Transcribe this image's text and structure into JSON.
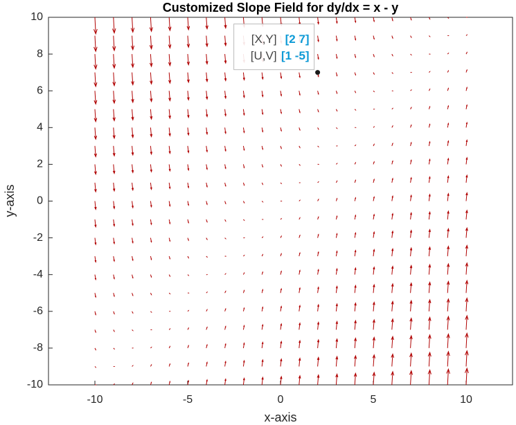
{
  "chart_data": {
    "type": "quiver",
    "title": "Customized Slope Field for dy/dx = x - y",
    "x_label": "x-axis",
    "y_label": "y-axis",
    "color": "#b00000",
    "xlim": [
      -12.5,
      12.5
    ],
    "ylim": [
      -10,
      10
    ],
    "xticks": [
      -10,
      -5,
      0,
      5,
      10
    ],
    "yticks": [
      -10,
      -8,
      -6,
      -4,
      -2,
      0,
      2,
      4,
      6,
      8,
      10
    ],
    "x": [
      -10,
      -9,
      -8,
      -7,
      -6,
      -5,
      -4,
      -3,
      -2,
      -1,
      0,
      1,
      2,
      3,
      4,
      5,
      6,
      7,
      8,
      9,
      10
    ],
    "y": [
      -10,
      -9,
      -8,
      -7,
      -6,
      -5,
      -4,
      -3,
      -2,
      -1,
      0,
      1,
      2,
      3,
      4,
      5,
      6,
      7,
      8,
      9,
      10
    ],
    "u": [
      [
        1,
        1,
        1,
        1,
        1,
        1,
        1,
        1,
        1,
        1,
        1,
        1,
        1,
        1,
        1,
        1,
        1,
        1,
        1,
        1,
        1
      ],
      [
        1,
        1,
        1,
        1,
        1,
        1,
        1,
        1,
        1,
        1,
        1,
        1,
        1,
        1,
        1,
        1,
        1,
        1,
        1,
        1,
        1
      ],
      [
        1,
        1,
        1,
        1,
        1,
        1,
        1,
        1,
        1,
        1,
        1,
        1,
        1,
        1,
        1,
        1,
        1,
        1,
        1,
        1,
        1
      ],
      [
        1,
        1,
        1,
        1,
        1,
        1,
        1,
        1,
        1,
        1,
        1,
        1,
        1,
        1,
        1,
        1,
        1,
        1,
        1,
        1,
        1
      ],
      [
        1,
        1,
        1,
        1,
        1,
        1,
        1,
        1,
        1,
        1,
        1,
        1,
        1,
        1,
        1,
        1,
        1,
        1,
        1,
        1,
        1
      ],
      [
        1,
        1,
        1,
        1,
        1,
        1,
        1,
        1,
        1,
        1,
        1,
        1,
        1,
        1,
        1,
        1,
        1,
        1,
        1,
        1,
        1
      ],
      [
        1,
        1,
        1,
        1,
        1,
        1,
        1,
        1,
        1,
        1,
        1,
        1,
        1,
        1,
        1,
        1,
        1,
        1,
        1,
        1,
        1
      ],
      [
        1,
        1,
        1,
        1,
        1,
        1,
        1,
        1,
        1,
        1,
        1,
        1,
        1,
        1,
        1,
        1,
        1,
        1,
        1,
        1,
        1
      ],
      [
        1,
        1,
        1,
        1,
        1,
        1,
        1,
        1,
        1,
        1,
        1,
        1,
        1,
        1,
        1,
        1,
        1,
        1,
        1,
        1,
        1
      ],
      [
        1,
        1,
        1,
        1,
        1,
        1,
        1,
        1,
        1,
        1,
        1,
        1,
        1,
        1,
        1,
        1,
        1,
        1,
        1,
        1,
        1
      ],
      [
        1,
        1,
        1,
        1,
        1,
        1,
        1,
        1,
        1,
        1,
        1,
        1,
        1,
        1,
        1,
        1,
        1,
        1,
        1,
        1,
        1
      ],
      [
        1,
        1,
        1,
        1,
        1,
        1,
        1,
        1,
        1,
        1,
        1,
        1,
        1,
        1,
        1,
        1,
        1,
        1,
        1,
        1,
        1
      ],
      [
        1,
        1,
        1,
        1,
        1,
        1,
        1,
        1,
        1,
        1,
        1,
        1,
        1,
        1,
        1,
        1,
        1,
        1,
        1,
        1,
        1
      ],
      [
        1,
        1,
        1,
        1,
        1,
        1,
        1,
        1,
        1,
        1,
        1,
        1,
        1,
        1,
        1,
        1,
        1,
        1,
        1,
        1,
        1
      ],
      [
        1,
        1,
        1,
        1,
        1,
        1,
        1,
        1,
        1,
        1,
        1,
        1,
        1,
        1,
        1,
        1,
        1,
        1,
        1,
        1,
        1
      ],
      [
        1,
        1,
        1,
        1,
        1,
        1,
        1,
        1,
        1,
        1,
        1,
        1,
        1,
        1,
        1,
        1,
        1,
        1,
        1,
        1,
        1
      ],
      [
        1,
        1,
        1,
        1,
        1,
        1,
        1,
        1,
        1,
        1,
        1,
        1,
        1,
        1,
        1,
        1,
        1,
        1,
        1,
        1,
        1
      ],
      [
        1,
        1,
        1,
        1,
        1,
        1,
        1,
        1,
        1,
        1,
        1,
        1,
        1,
        1,
        1,
        1,
        1,
        1,
        1,
        1,
        1
      ],
      [
        1,
        1,
        1,
        1,
        1,
        1,
        1,
        1,
        1,
        1,
        1,
        1,
        1,
        1,
        1,
        1,
        1,
        1,
        1,
        1,
        1
      ],
      [
        1,
        1,
        1,
        1,
        1,
        1,
        1,
        1,
        1,
        1,
        1,
        1,
        1,
        1,
        1,
        1,
        1,
        1,
        1,
        1,
        1
      ],
      [
        1,
        1,
        1,
        1,
        1,
        1,
        1,
        1,
        1,
        1,
        1,
        1,
        1,
        1,
        1,
        1,
        1,
        1,
        1,
        1,
        1
      ]
    ],
    "v": [
      [
        0,
        1,
        2,
        3,
        4,
        5,
        6,
        7,
        8,
        9,
        10,
        11,
        12,
        13,
        14,
        15,
        16,
        17,
        18,
        19,
        20
      ],
      [
        -1,
        0,
        1,
        2,
        3,
        4,
        5,
        6,
        7,
        8,
        9,
        10,
        11,
        12,
        13,
        14,
        15,
        16,
        17,
        18,
        19
      ],
      [
        -2,
        -1,
        0,
        1,
        2,
        3,
        4,
        5,
        6,
        7,
        8,
        9,
        10,
        11,
        12,
        13,
        14,
        15,
        16,
        17,
        18
      ],
      [
        -3,
        -2,
        -1,
        0,
        1,
        2,
        3,
        4,
        5,
        6,
        7,
        8,
        9,
        10,
        11,
        12,
        13,
        14,
        15,
        16,
        17
      ],
      [
        -4,
        -3,
        -2,
        -1,
        0,
        1,
        2,
        3,
        4,
        5,
        6,
        7,
        8,
        9,
        10,
        11,
        12,
        13,
        14,
        15,
        16
      ],
      [
        -5,
        -4,
        -3,
        -2,
        -1,
        0,
        1,
        2,
        3,
        4,
        5,
        6,
        7,
        8,
        9,
        10,
        11,
        12,
        13,
        14,
        15
      ],
      [
        -6,
        -5,
        -4,
        -3,
        -2,
        -1,
        0,
        1,
        2,
        3,
        4,
        5,
        6,
        7,
        8,
        9,
        10,
        11,
        12,
        13,
        14
      ],
      [
        -7,
        -6,
        -5,
        -4,
        -3,
        -2,
        -1,
        0,
        1,
        2,
        3,
        4,
        5,
        6,
        7,
        8,
        9,
        10,
        11,
        12,
        13
      ],
      [
        -8,
        -7,
        -6,
        -5,
        -4,
        -3,
        -2,
        -1,
        0,
        1,
        2,
        3,
        4,
        5,
        6,
        7,
        8,
        9,
        10,
        11,
        12
      ],
      [
        -9,
        -8,
        -7,
        -6,
        -5,
        -4,
        -3,
        -2,
        -1,
        0,
        1,
        2,
        3,
        4,
        5,
        6,
        7,
        8,
        9,
        10,
        11
      ],
      [
        -10,
        -9,
        -8,
        -7,
        -6,
        -5,
        -4,
        -3,
        -2,
        -1,
        0,
        1,
        2,
        3,
        4,
        5,
        6,
        7,
        8,
        9,
        10
      ],
      [
        -11,
        -10,
        -9,
        -8,
        -7,
        -6,
        -5,
        -4,
        -3,
        -2,
        -1,
        0,
        1,
        2,
        3,
        4,
        5,
        6,
        7,
        8,
        9
      ],
      [
        -12,
        -11,
        -10,
        -9,
        -8,
        -7,
        -6,
        -5,
        -4,
        -3,
        -2,
        -1,
        0,
        1,
        2,
        3,
        4,
        5,
        6,
        7,
        8
      ],
      [
        -13,
        -12,
        -11,
        -10,
        -9,
        -8,
        -7,
        -6,
        -5,
        -4,
        -3,
        -2,
        -1,
        0,
        1,
        2,
        3,
        4,
        5,
        6,
        7
      ],
      [
        -14,
        -13,
        -12,
        -11,
        -10,
        -9,
        -8,
        -7,
        -6,
        -5,
        -4,
        -3,
        -2,
        -1,
        0,
        1,
        2,
        3,
        4,
        5,
        6
      ],
      [
        -15,
        -14,
        -13,
        -12,
        -11,
        -10,
        -9,
        -8,
        -7,
        -6,
        -5,
        -4,
        -3,
        -2,
        -1,
        0,
        1,
        2,
        3,
        4,
        5
      ],
      [
        -16,
        -15,
        -14,
        -13,
        -12,
        -11,
        -10,
        -9,
        -8,
        -7,
        -6,
        -5,
        -4,
        -3,
        -2,
        -1,
        0,
        1,
        2,
        3,
        4
      ],
      [
        -17,
        -16,
        -15,
        -14,
        -13,
        -12,
        -11,
        -10,
        -9,
        -8,
        -7,
        -6,
        -5,
        -4,
        -3,
        -2,
        -1,
        0,
        1,
        2,
        3
      ],
      [
        -18,
        -17,
        -16,
        -15,
        -14,
        -13,
        -12,
        -11,
        -10,
        -9,
        -8,
        -7,
        -6,
        -5,
        -4,
        -3,
        -2,
        -1,
        0,
        1,
        2
      ],
      [
        -19,
        -18,
        -17,
        -16,
        -15,
        -14,
        -13,
        -12,
        -11,
        -10,
        -9,
        -8,
        -7,
        -6,
        -5,
        -4,
        -3,
        -2,
        -1,
        0,
        1
      ],
      [
        -20,
        -19,
        -18,
        -17,
        -16,
        -15,
        -14,
        -13,
        -12,
        -11,
        -10,
        -9,
        -8,
        -7,
        -6,
        -5,
        -4,
        -3,
        -2,
        -1,
        0
      ]
    ],
    "datatip": {
      "x": 2,
      "y": 7,
      "rows": [
        {
          "label": "[X,Y]",
          "value": "[2 7]"
        },
        {
          "label": "[U,V]",
          "value": "[1 -5]"
        }
      ]
    }
  }
}
